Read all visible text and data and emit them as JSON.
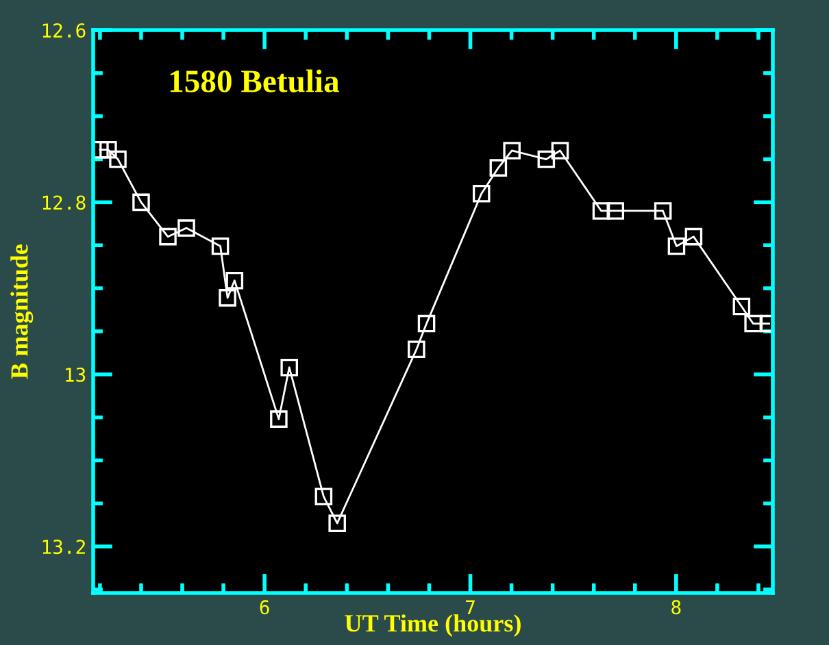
{
  "chart_data": {
    "type": "line",
    "title": "1580 Betulia",
    "xlabel": "UT Time (hours)",
    "ylabel": "B magnitude",
    "x": [
      5.2,
      5.24,
      5.287,
      5.4,
      5.53,
      5.62,
      5.785,
      5.82,
      5.854,
      6.069,
      6.12,
      6.287,
      6.353,
      6.738,
      6.787,
      7.054,
      7.136,
      7.202,
      7.369,
      7.436,
      7.636,
      7.705,
      7.936,
      8.002,
      8.085,
      8.318,
      8.374,
      8.452
    ],
    "series": [
      {
        "color": "#ffffff",
        "values": [
          12.739,
          12.739,
          12.75,
          12.8,
          12.84,
          12.83,
          12.851,
          12.911,
          12.891,
          13.052,
          12.992,
          13.142,
          13.173,
          12.971,
          12.941,
          12.79,
          12.76,
          12.74,
          12.75,
          12.74,
          12.81,
          12.81,
          12.81,
          12.851,
          12.84,
          12.921,
          12.941,
          12.941
        ]
      }
    ],
    "xlim": [
      5.167,
      8.47
    ],
    "xticks": [
      6,
      7,
      8
    ],
    "ylim": [
      13.254,
      12.6
    ],
    "yticks": [
      12.6,
      12.8,
      13,
      13.2
    ],
    "marker": "square",
    "line_style": "solid",
    "grid": false,
    "legend": false
  }
}
